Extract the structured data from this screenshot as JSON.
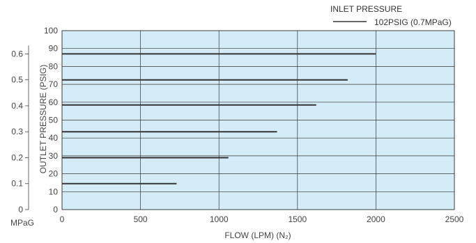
{
  "chart_data": {
    "type": "line",
    "title": "",
    "xlabel": "FLOW (LPM) (N₂)",
    "ylabel": "OUTLET PRESSURE (PSIG)",
    "xlim": [
      0,
      2500
    ],
    "ylim": [
      0,
      100
    ],
    "x_ticks": [
      "0",
      "500",
      "1000",
      "1500",
      "2000",
      "2500"
    ],
    "y_ticks": [
      "0",
      "10",
      "20",
      "30",
      "40",
      "50",
      "60",
      "70",
      "80",
      "90",
      "100"
    ],
    "secondary_y": {
      "unit_label": "MPaG",
      "ticks": [
        {
          "label": "0",
          "psig": 0
        },
        {
          "label": "0.1",
          "psig": 14.5
        },
        {
          "label": "0.2",
          "psig": 29.0
        },
        {
          "label": "0.3",
          "psig": 43.5
        },
        {
          "label": "0.4",
          "psig": 58.0
        },
        {
          "label": "0.5",
          "psig": 72.5
        },
        {
          "label": "0.6",
          "psig": 87.0
        }
      ]
    },
    "grid": true,
    "background_color": "#d4ecf7",
    "line_color": "#333333",
    "legend": {
      "title": "INLET PRESSURE",
      "placement": "top-right",
      "entries": [
        "102PSIG (0.7MPaG)"
      ]
    },
    "series": [
      {
        "x": [
          0,
          730
        ],
        "y": [
          14.5,
          14.5
        ]
      },
      {
        "x": [
          0,
          1060
        ],
        "y": [
          29.0,
          29.0
        ]
      },
      {
        "x": [
          0,
          1370
        ],
        "y": [
          43.5,
          43.5
        ]
      },
      {
        "x": [
          0,
          1620
        ],
        "y": [
          58.5,
          58.5
        ]
      },
      {
        "x": [
          0,
          1820
        ],
        "y": [
          72.5,
          72.5
        ]
      },
      {
        "x": [
          0,
          2000
        ],
        "y": [
          87.0,
          87.0
        ]
      }
    ]
  }
}
